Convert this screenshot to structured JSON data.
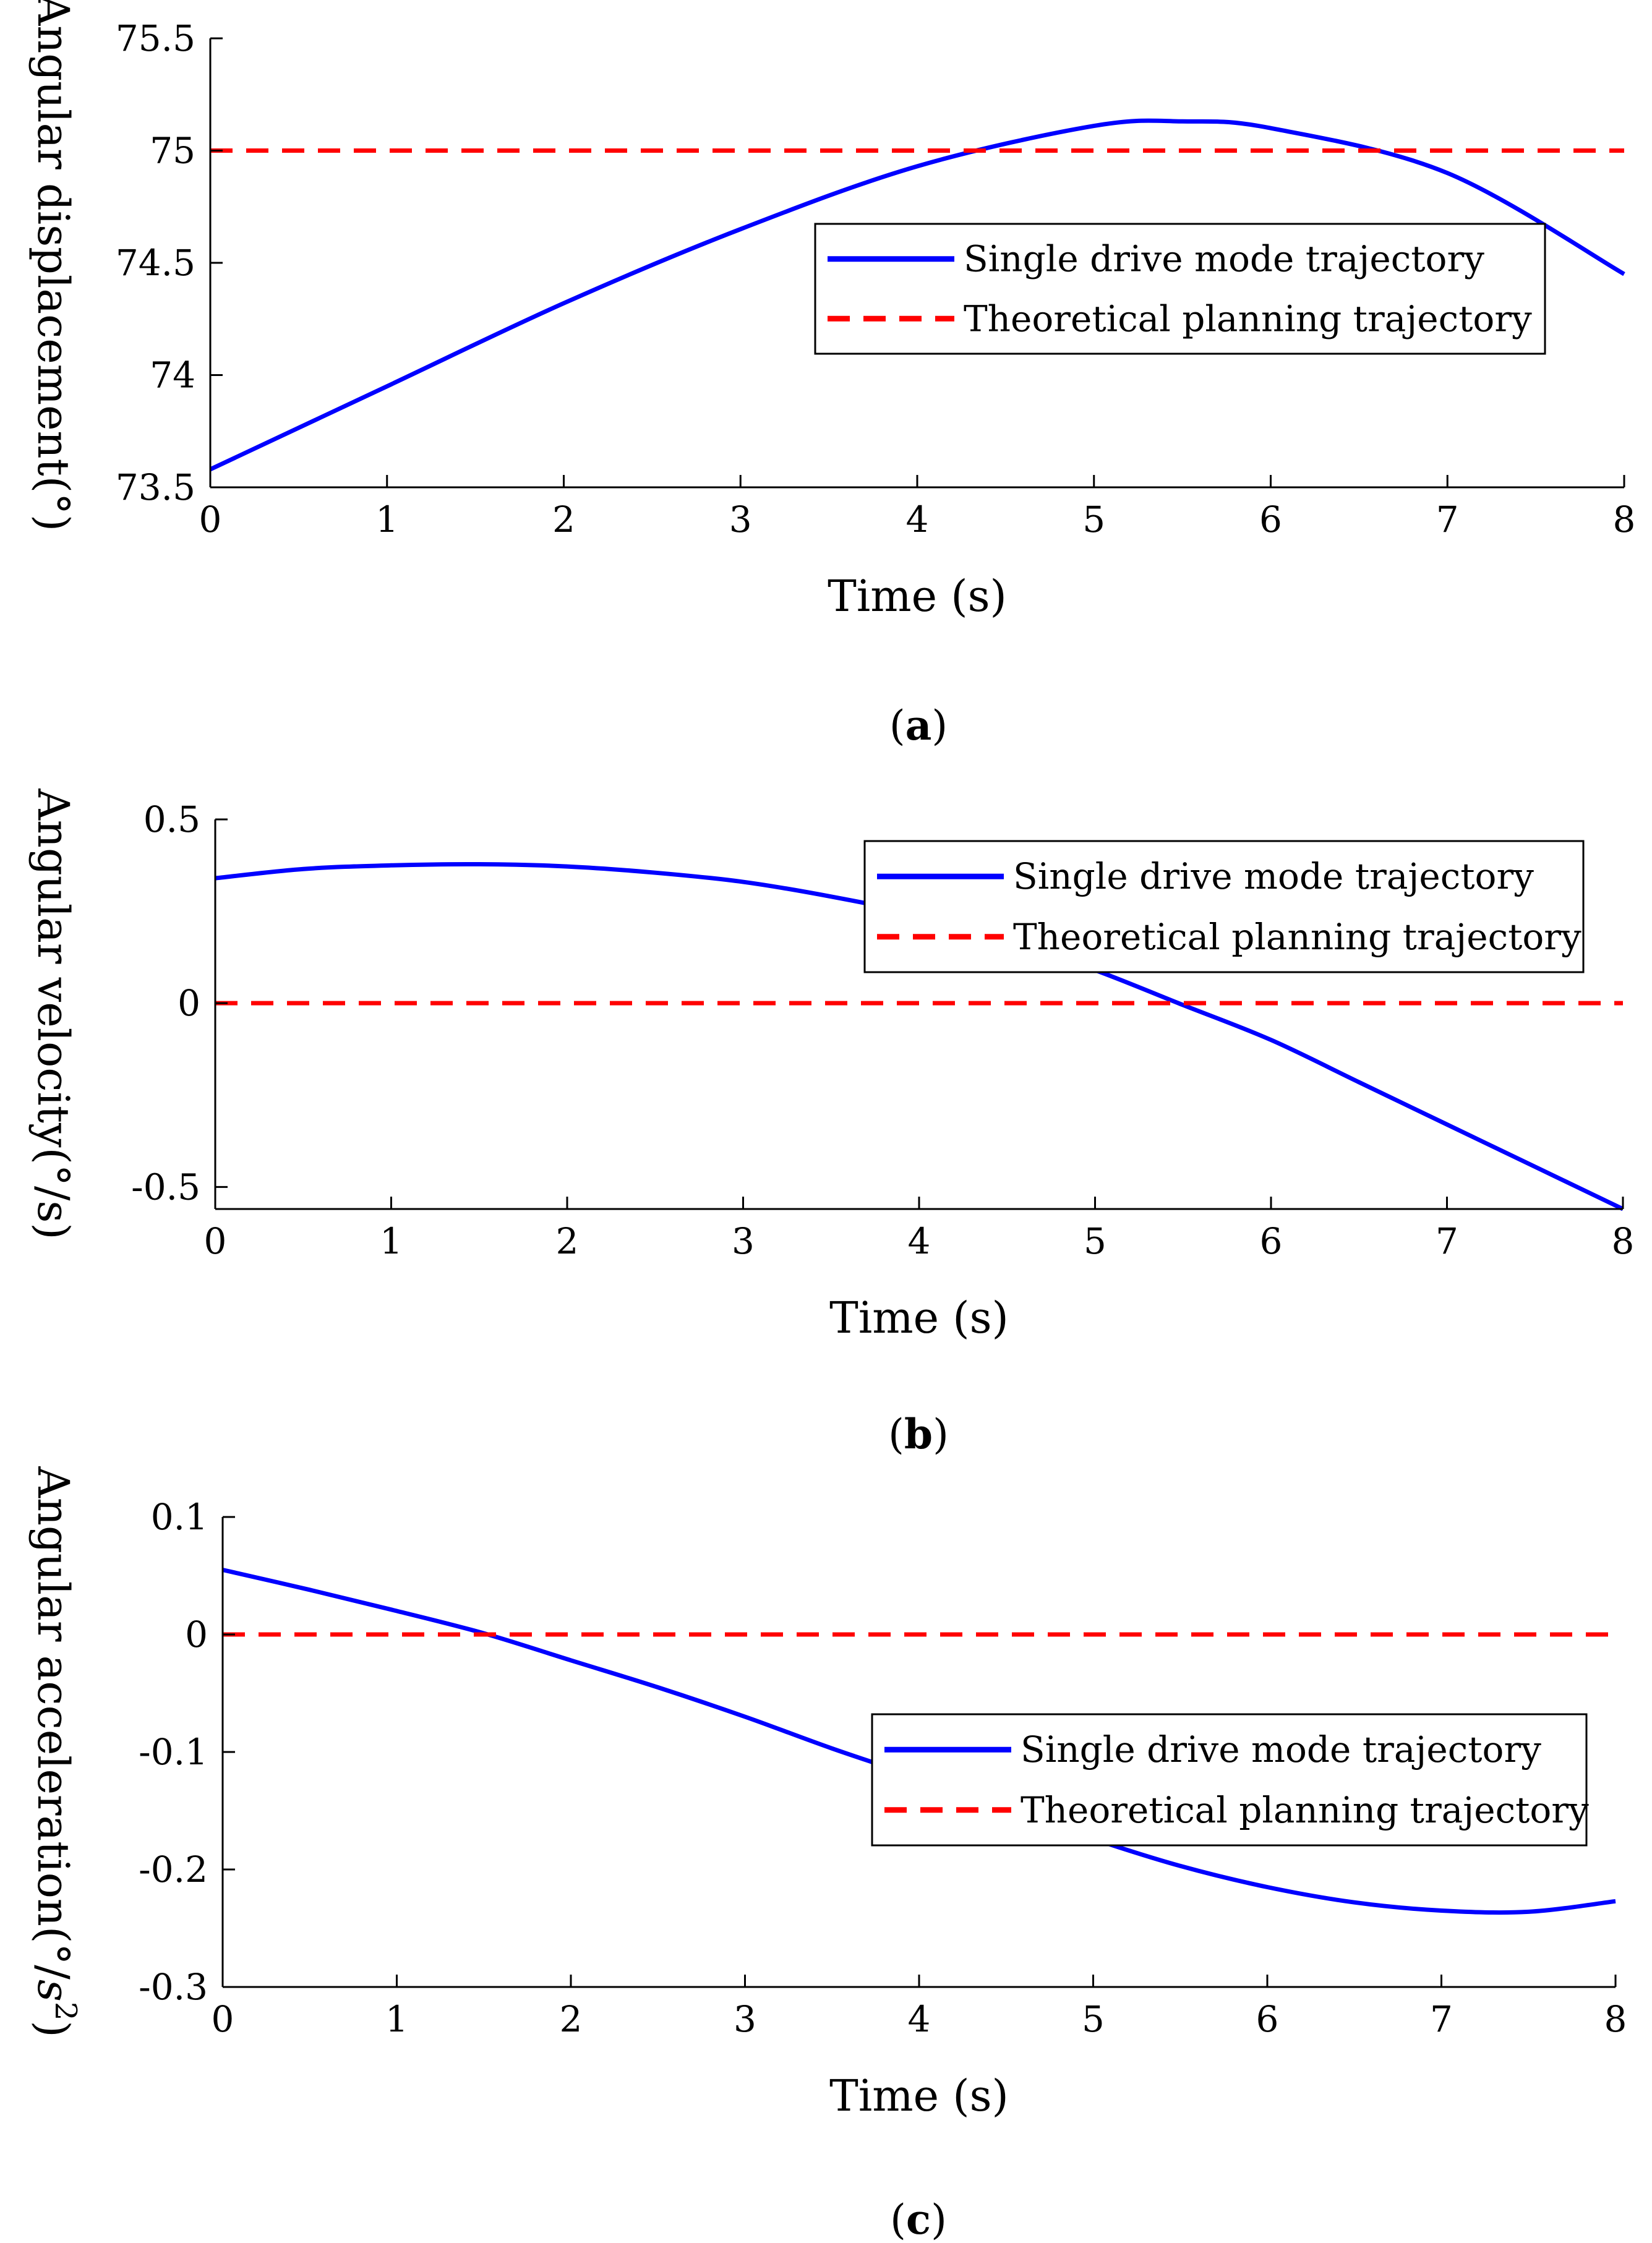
{
  "chart_data": [
    {
      "type": "line",
      "panel": "a",
      "caption_letter": "a",
      "xlabel": "Time (s)",
      "ylabel": "Angular displacement(°)",
      "xlim": [
        0,
        8
      ],
      "ylim": [
        73.5,
        75.5
      ],
      "xticks": [
        "0",
        "1",
        "2",
        "3",
        "4",
        "5",
        "6",
        "7",
        "8"
      ],
      "yticks": [
        "73.5",
        "74",
        "74.5",
        "75",
        "75.5"
      ],
      "legend_position": "center-right",
      "series": [
        {
          "name": "Single drive mode trajectory",
          "color": "#0000ff",
          "style": "solid",
          "x": [
            0,
            1,
            2,
            3,
            4,
            5,
            5.5,
            6,
            7,
            8
          ],
          "y": [
            73.58,
            73.95,
            74.32,
            74.65,
            74.93,
            75.11,
            75.13,
            75.1,
            74.9,
            74.45
          ]
        },
        {
          "name": "Theoretical planning trajectory",
          "color": "#ff0000",
          "style": "dashed",
          "x": [
            0,
            8
          ],
          "y": [
            75,
            75
          ]
        }
      ]
    },
    {
      "type": "line",
      "panel": "b",
      "caption_letter": "b",
      "xlabel": "Time (s)",
      "ylabel": "Angular velocity(°/s)",
      "xlim": [
        0,
        8
      ],
      "ylim": [
        -0.56,
        0.5
      ],
      "xticks": [
        "0",
        "1",
        "2",
        "3",
        "4",
        "5",
        "6",
        "7",
        "8"
      ],
      "yticks": [
        "-0.5",
        "0",
        "0.5"
      ],
      "legend_position": "top-right",
      "series": [
        {
          "name": "Single drive mode trajectory",
          "color": "#0000ff",
          "style": "solid",
          "x": [
            0,
            0.5,
            1,
            1.5,
            2,
            2.5,
            3,
            3.5,
            4,
            4.5,
            5,
            5.5,
            6,
            6.5,
            7,
            7.5,
            8
          ],
          "y": [
            0.34,
            0.365,
            0.375,
            0.378,
            0.372,
            0.355,
            0.33,
            0.29,
            0.24,
            0.17,
            0.09,
            -0.005,
            -0.1,
            -0.215,
            -0.33,
            -0.445,
            -0.56
          ]
        },
        {
          "name": "Theoretical planning trajectory",
          "color": "#ff0000",
          "style": "dashed",
          "x": [
            0,
            8
          ],
          "y": [
            0,
            0
          ]
        }
      ]
    },
    {
      "type": "line",
      "panel": "c",
      "caption_letter": "c",
      "xlabel": "Time (s)",
      "ylabel_main": "Angular acceleration(°/",
      "ylabel_var": "s",
      "ylabel_sup": "2",
      "ylabel_close": ")",
      "xlim": [
        0,
        8
      ],
      "ylim": [
        -0.3,
        0.1
      ],
      "xticks": [
        "0",
        "1",
        "2",
        "3",
        "4",
        "5",
        "6",
        "7",
        "8"
      ],
      "yticks": [
        "-0.3",
        "-0.2",
        "-0.1",
        "0",
        "0.1"
      ],
      "legend_position": "center-right",
      "series": [
        {
          "name": "Single drive mode trajectory",
          "color": "#0000ff",
          "style": "solid",
          "x": [
            0,
            0.5,
            1,
            1.5,
            2,
            2.5,
            3,
            3.5,
            4,
            4.5,
            5,
            5.5,
            6,
            6.5,
            7,
            7.5,
            8
          ],
          "y": [
            0.055,
            0.038,
            0.02,
            0.001,
            -0.022,
            -0.045,
            -0.07,
            -0.097,
            -0.122,
            -0.148,
            -0.174,
            -0.197,
            -0.215,
            -0.228,
            -0.235,
            -0.236,
            -0.227
          ]
        },
        {
          "name": "Theoretical planning trajectory",
          "color": "#ff0000",
          "style": "dashed",
          "x": [
            0,
            8
          ],
          "y": [
            0,
            0
          ]
        }
      ]
    }
  ]
}
